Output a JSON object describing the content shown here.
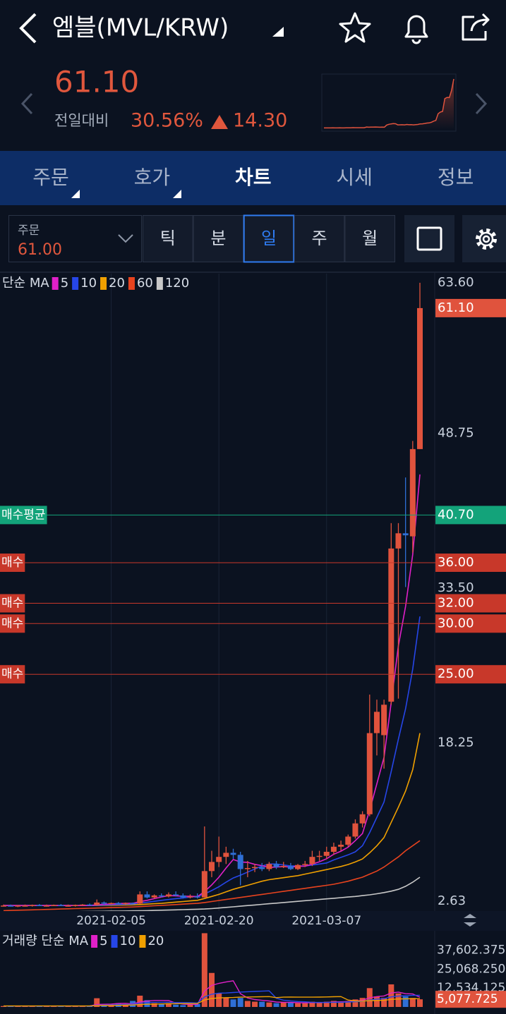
{
  "header": {
    "title": "엠블(MVL/KRW)",
    "price": "61.10",
    "change_label": "전일대비",
    "change_rate": "30.56%",
    "change": "14.30"
  },
  "tabs": [
    "주문",
    "호가",
    "차트",
    "시세",
    "정보"
  ],
  "active_tab": 2,
  "order": {
    "label": "주문",
    "price": "61.00"
  },
  "periods": [
    "틱",
    "분",
    "일",
    "주",
    "월"
  ],
  "active_period": 2,
  "chart": {
    "type": "candlestick",
    "ma_label": "단순 MA",
    "up_color": "#e0533d",
    "down_color": "#2f6fd6",
    "ylim": [
      1.66,
      64.5
    ],
    "yticks": [
      {
        "value": 63.6,
        "label": "63.60"
      },
      {
        "value": 48.75,
        "label": "48.75"
      },
      {
        "value": 33.5,
        "label": "33.50"
      },
      {
        "value": 18.25,
        "label": "18.25"
      },
      2.63
    ],
    "last": {
      "value": 61.1,
      "label": "61.10"
    },
    "orders": [
      {
        "label": "매수평균",
        "price": {
          "value": 40.7,
          "label": "40.70"
        },
        "color": "#13a37a"
      },
      {
        "label": "매수",
        "price": {
          "value": 36,
          "label": "36.00"
        },
        "color": "#c8382a"
      },
      {
        "label": "매수",
        "price": {
          "value": 32,
          "label": "32.00"
        },
        "color": "#c8382a"
      },
      {
        "label": "매수",
        "price": {
          "value": 30,
          "label": "30.00"
        },
        "color": "#c8382a"
      },
      {
        "label": "매수",
        "price": {
          "value": 25,
          "label": "25.00"
        },
        "color": "#c8382a"
      }
    ],
    "dates": [
      null,
      null,
      null,
      null,
      null,
      null,
      null,
      null,
      null,
      null,
      null,
      null,
      null,
      null,
      null,
      "2021-02-05",
      null,
      null,
      null,
      null,
      null,
      null,
      null,
      null,
      null,
      null,
      null,
      null,
      null,
      null,
      "2021-02-20",
      null,
      null,
      null,
      null,
      null,
      null,
      null,
      null,
      null,
      null,
      null,
      null,
      null,
      null,
      "2021-03-07",
      null,
      null,
      null,
      null,
      null,
      null,
      null,
      null,
      null,
      null,
      null,
      null,
      null
    ],
    "candles": [
      [
        2.2,
        2.3,
        2.1,
        2.2
      ],
      [
        2.2,
        2.3,
        2.1,
        2.15
      ],
      [
        2.15,
        2.25,
        2.05,
        2.2
      ],
      [
        2.2,
        2.3,
        2.1,
        2.2
      ],
      [
        2.2,
        2.3,
        2.1,
        2.25
      ],
      [
        2.25,
        2.35,
        2.15,
        2.2
      ],
      [
        2.2,
        2.3,
        2.1,
        2.2
      ],
      [
        2.2,
        2.3,
        2.15,
        2.25
      ],
      [
        2.25,
        2.35,
        2.15,
        2.2
      ],
      [
        2.2,
        2.3,
        2.1,
        2.2
      ],
      [
        2.2,
        2.3,
        2.1,
        2.25
      ],
      [
        2.25,
        2.35,
        2.2,
        2.3
      ],
      [
        2.3,
        2.4,
        2.2,
        2.25
      ],
      [
        2.25,
        2.8,
        2.2,
        2.5
      ],
      [
        2.5,
        2.6,
        2.3,
        2.4
      ],
      [
        2.4,
        2.5,
        2.3,
        2.45
      ],
      [
        2.45,
        2.55,
        2.35,
        2.4
      ],
      [
        2.4,
        2.5,
        2.3,
        2.45
      ],
      [
        2.45,
        2.5,
        2.35,
        2.4
      ],
      [
        2.4,
        3.6,
        2.35,
        3.3
      ],
      [
        3.3,
        3.6,
        2.9,
        3.0
      ],
      [
        3.0,
        3.3,
        2.9,
        3.2
      ],
      [
        3.2,
        3.4,
        3.0,
        3.1
      ],
      [
        3.1,
        3.5,
        3.0,
        3.3
      ],
      [
        3.3,
        3.6,
        3.1,
        3.2
      ],
      [
        3.2,
        3.4,
        2.9,
        3.0
      ],
      [
        3.0,
        3.3,
        2.9,
        3.1
      ],
      [
        3.1,
        3.4,
        2.9,
        3.0
      ],
      [
        3.0,
        10.0,
        3.0,
        5.6
      ],
      [
        5.6,
        7.6,
        5.0,
        6.5
      ],
      [
        6.5,
        9.0,
        6.0,
        7.0
      ],
      [
        7.0,
        8.0,
        6.3,
        7.4
      ],
      [
        7.4,
        7.8,
        6.8,
        7.2
      ],
      [
        7.2,
        7.5,
        4.2,
        5.8
      ],
      [
        5.8,
        6.6,
        5.0,
        5.9
      ],
      [
        5.9,
        6.3,
        5.5,
        6.0
      ],
      [
        6.0,
        6.4,
        5.6,
        5.8
      ],
      [
        5.8,
        6.5,
        5.6,
        6.3
      ],
      [
        6.3,
        6.6,
        5.8,
        6.0
      ],
      [
        6.0,
        6.5,
        5.9,
        6.1
      ],
      [
        6.1,
        6.4,
        5.7,
        5.8
      ],
      [
        5.8,
        6.3,
        5.7,
        6.2
      ],
      [
        6.2,
        6.6,
        6.0,
        6.3
      ],
      [
        6.3,
        7.6,
        6.1,
        7.0
      ],
      [
        7.0,
        7.6,
        6.6,
        7.1
      ],
      [
        7.1,
        8.0,
        6.8,
        7.5
      ],
      [
        7.5,
        8.4,
        7.2,
        8.0
      ],
      [
        8.0,
        8.6,
        7.6,
        8.2
      ],
      [
        8.2,
        9.2,
        8.0,
        9.0
      ],
      [
        9.0,
        10.7,
        8.8,
        10.3
      ],
      [
        10.3,
        11.5,
        9.9,
        11.2
      ],
      [
        11.2,
        23.0,
        11.0,
        19.2
      ],
      [
        19.2,
        22.5,
        17.0,
        21.3
      ],
      [
        19.0,
        22.5,
        15.7,
        22.0
      ],
      [
        22.3,
        39.9,
        22.0,
        37.4
      ],
      [
        37.4,
        39.9,
        22.6,
        38.9
      ],
      [
        38.9,
        44.4,
        33.6,
        38.7
      ],
      [
        38.6,
        48.0,
        37.0,
        47.2
      ],
      [
        47.2,
        63.6,
        47.2,
        61.1
      ]
    ],
    "ma": [
      {
        "name": "5",
        "color": "#e020c8",
        "values": [
          2.2,
          2.2,
          2.2,
          2.2,
          2.2,
          2.2,
          2.2,
          2.2,
          2.2,
          2.2,
          2.2,
          2.2,
          2.2,
          2.28,
          2.32,
          2.36,
          2.4,
          2.42,
          2.42,
          2.6,
          2.72,
          2.88,
          3.04,
          3.18,
          3.16,
          3.12,
          3.12,
          3.08,
          3.58,
          4.24,
          5.0,
          5.9,
          6.74,
          6.5,
          6.46,
          6.26,
          6.14,
          5.96,
          6.0,
          6.04,
          6.0,
          6.08,
          6.08,
          6.28,
          6.52,
          6.82,
          7.26,
          7.56,
          7.96,
          8.6,
          9.3,
          11.6,
          14.2,
          16.8,
          22.2,
          27.8,
          31.7,
          36.8,
          44.7
        ]
      },
      {
        "name": "10",
        "color": "#2646e8",
        "values": [
          2.2,
          2.2,
          2.2,
          2.2,
          2.2,
          2.2,
          2.2,
          2.2,
          2.2,
          2.2,
          2.2,
          2.2,
          2.2,
          2.22,
          2.25,
          2.28,
          2.3,
          2.32,
          2.35,
          2.45,
          2.52,
          2.62,
          2.72,
          2.8,
          2.88,
          2.95,
          3.04,
          3.1,
          3.34,
          3.68,
          4.06,
          4.5,
          4.92,
          5.2,
          5.5,
          5.8,
          6.1,
          6.3,
          6.3,
          6.2,
          6.1,
          6.1,
          6.1,
          6.2,
          6.3,
          6.4,
          6.7,
          6.95,
          7.2,
          7.5,
          8.1,
          9.4,
          10.9,
          12.4,
          15.4,
          18.6,
          21.6,
          25.5,
          30.7
        ]
      },
      {
        "name": "20",
        "color": "#f0a000",
        "values": [
          2.2,
          2.2,
          2.2,
          2.2,
          2.2,
          2.2,
          2.2,
          2.2,
          2.2,
          2.2,
          2.2,
          2.2,
          2.2,
          2.2,
          2.22,
          2.23,
          2.24,
          2.25,
          2.27,
          2.3,
          2.34,
          2.38,
          2.42,
          2.48,
          2.54,
          2.6,
          2.66,
          2.72,
          2.9,
          3.1,
          3.3,
          3.55,
          3.8,
          4.0,
          4.2,
          4.4,
          4.6,
          4.75,
          4.85,
          4.95,
          5.05,
          5.15,
          5.3,
          5.45,
          5.6,
          5.75,
          5.9,
          6.05,
          6.25,
          6.5,
          6.8,
          7.4,
          8.1,
          8.9,
          10.4,
          11.9,
          13.5,
          15.6,
          19.2
        ]
      },
      {
        "name": "60",
        "color": "#e8431e",
        "values": [
          1.7,
          1.72,
          1.74,
          1.76,
          1.78,
          1.8,
          1.82,
          1.84,
          1.86,
          1.88,
          1.9,
          1.92,
          1.94,
          1.96,
          1.98,
          2.0,
          2.02,
          2.04,
          2.06,
          2.1,
          2.14,
          2.18,
          2.22,
          2.26,
          2.3,
          2.34,
          2.38,
          2.42,
          2.5,
          2.6,
          2.7,
          2.8,
          2.9,
          3.0,
          3.1,
          3.2,
          3.3,
          3.4,
          3.5,
          3.6,
          3.7,
          3.8,
          3.9,
          4.0,
          4.1,
          4.2,
          4.3,
          4.45,
          4.6,
          4.8,
          5.0,
          5.3,
          5.6,
          6.0,
          6.5,
          7.0,
          7.6,
          8.1,
          8.6
        ]
      },
      {
        "name": "120",
        "color": "#c8c8c8",
        "values": [
          1.5,
          1.51,
          1.52,
          1.53,
          1.54,
          1.55,
          1.56,
          1.57,
          1.58,
          1.59,
          1.6,
          1.61,
          1.62,
          1.63,
          1.64,
          1.65,
          1.66,
          1.67,
          1.68,
          1.69,
          1.7,
          1.72,
          1.74,
          1.76,
          1.78,
          1.8,
          1.82,
          1.84,
          1.86,
          1.9,
          1.96,
          2.02,
          2.08,
          2.14,
          2.2,
          2.26,
          2.32,
          2.38,
          2.44,
          2.5,
          2.56,
          2.62,
          2.68,
          2.74,
          2.8,
          2.86,
          2.92,
          2.98,
          3.04,
          3.1,
          3.18,
          3.26,
          3.36,
          3.48,
          3.62,
          3.8,
          4.1,
          4.5,
          5.0
        ]
      }
    ]
  },
  "volume": {
    "type": "bar",
    "ma_label": "거래량 단순 MA",
    "ylim": [
      0,
      50600
    ],
    "yticks": [
      {
        "value": 37602.375,
        "label": "37,602.375"
      },
      {
        "value": 25068.25,
        "label": "25,068.250"
      },
      {
        "value": 12534.125,
        "label": "12,534.125"
      }
    ],
    "last": {
      "value": 5077.725,
      "label": "5,077.725"
    },
    "values": [
      600,
      500,
      700,
      400,
      500,
      800,
      600,
      500,
      700,
      900,
      600,
      800,
      700,
      5800,
      1500,
      1200,
      2500,
      1000,
      4000,
      7500,
      4500,
      2500,
      2000,
      2500,
      1500,
      1200,
      1500,
      2000,
      49000,
      22600,
      9000,
      6000,
      5000,
      6000,
      4000,
      3500,
      3500,
      3000,
      2500,
      3000,
      3000,
      2500,
      2500,
      3500,
      3000,
      3500,
      4000,
      3000,
      4000,
      5000,
      6000,
      12500,
      7000,
      6000,
      15000,
      9000,
      7000,
      6000,
      5077.725
    ],
    "ma": [
      {
        "name": "5",
        "color": "#e020c8",
        "values": [
          600,
          600,
          600,
          600,
          600,
          600,
          600,
          600,
          600,
          600,
          600,
          600,
          600,
          1700,
          1800,
          1900,
          2300,
          2400,
          2000,
          3300,
          3900,
          4300,
          4300,
          4200,
          2600,
          1900,
          1700,
          1700,
          10600,
          14300,
          15700,
          16600,
          17400,
          8800,
          6000,
          4900,
          4400,
          4000,
          3300,
          3100,
          3000,
          2800,
          2700,
          2900,
          2900,
          3000,
          3300,
          3400,
          3500,
          3900,
          4400,
          6100,
          6900,
          7300,
          9300,
          9900,
          8800,
          8600,
          6400
        ]
      },
      {
        "name": "10",
        "color": "#2646e8",
        "values": [
          600,
          600,
          600,
          600,
          600,
          600,
          600,
          600,
          600,
          600,
          600,
          600,
          600,
          1100,
          1200,
          1300,
          1500,
          1600,
          1800,
          2500,
          2900,
          3100,
          3100,
          3100,
          2900,
          2900,
          2800,
          2600,
          6700,
          8500,
          9200,
          9300,
          9600,
          9900,
          10100,
          10300,
          10500,
          10700,
          5800,
          4500,
          4000,
          3600,
          3400,
          3100,
          3000,
          3000,
          3100,
          3100,
          3300,
          3500,
          3700,
          4600,
          5200,
          5500,
          6700,
          7200,
          7500,
          7700,
          7800
        ]
      },
      {
        "name": "20",
        "color": "#f0a000",
        "values": [
          650,
          650,
          650,
          650,
          650,
          650,
          650,
          650,
          650,
          650,
          650,
          650,
          650,
          900,
          950,
          1000,
          1100,
          1150,
          1300,
          1600,
          1800,
          1900,
          2000,
          2100,
          2150,
          2200,
          2250,
          2300,
          4600,
          5600,
          6000,
          6200,
          6300,
          6500,
          6600,
          6700,
          6800,
          6900,
          6200,
          6500,
          6600,
          6500,
          6500,
          6500,
          6550,
          6650,
          6800,
          6900,
          4600,
          4000,
          3900,
          4200,
          4300,
          4400,
          5000,
          5300,
          5400,
          5500,
          5500
        ]
      }
    ]
  }
}
